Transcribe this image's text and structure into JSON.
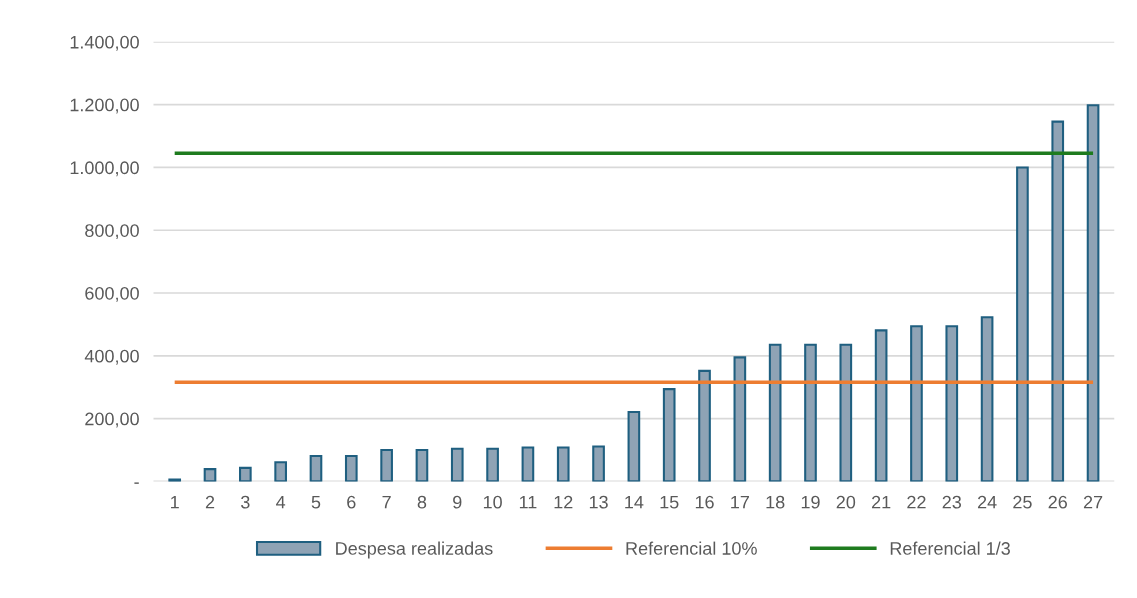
{
  "chart_data": {
    "type": "bar",
    "categories": [
      "1",
      "2",
      "3",
      "4",
      "5",
      "6",
      "7",
      "8",
      "9",
      "10",
      "11",
      "12",
      "13",
      "14",
      "15",
      "16",
      "17",
      "18",
      "19",
      "20",
      "21",
      "22",
      "23",
      "24",
      "25",
      "26",
      "27"
    ],
    "series": [
      {
        "name": "Despesa realizadas",
        "color": "#8fa3b5",
        "values": [
          6,
          39,
          43,
          61,
          81,
          81,
          100,
          100,
          104,
          104,
          108,
          108,
          111,
          221,
          294,
          352,
          395,
          435,
          435,
          435,
          481,
          494,
          494,
          523,
          1000,
          1146,
          1198
        ]
      }
    ],
    "ref_lines": [
      {
        "axis": "y",
        "value": 316,
        "label": "Referencial 10%",
        "color": "#ed7d31",
        "line_style": "solid"
      },
      {
        "axis": "y",
        "value": 1045,
        "label": "Referencial 1/3",
        "color": "#1e7b1e",
        "line_style": "solid"
      }
    ],
    "ylim": [
      0,
      1400
    ],
    "yticks": [
      {
        "value": 0,
        "label": "-"
      },
      {
        "value": 200,
        "label": "200,00"
      },
      {
        "value": 400,
        "label": "400,00"
      },
      {
        "value": 600,
        "label": "600,00"
      },
      {
        "value": 800,
        "label": "800,00"
      },
      {
        "value": 1000,
        "label": "1.000,00"
      },
      {
        "value": 1200,
        "label": "1.200,00"
      },
      {
        "value": 1400,
        "label": "1.400,00"
      }
    ],
    "grid": "y",
    "legend": "bottom"
  }
}
